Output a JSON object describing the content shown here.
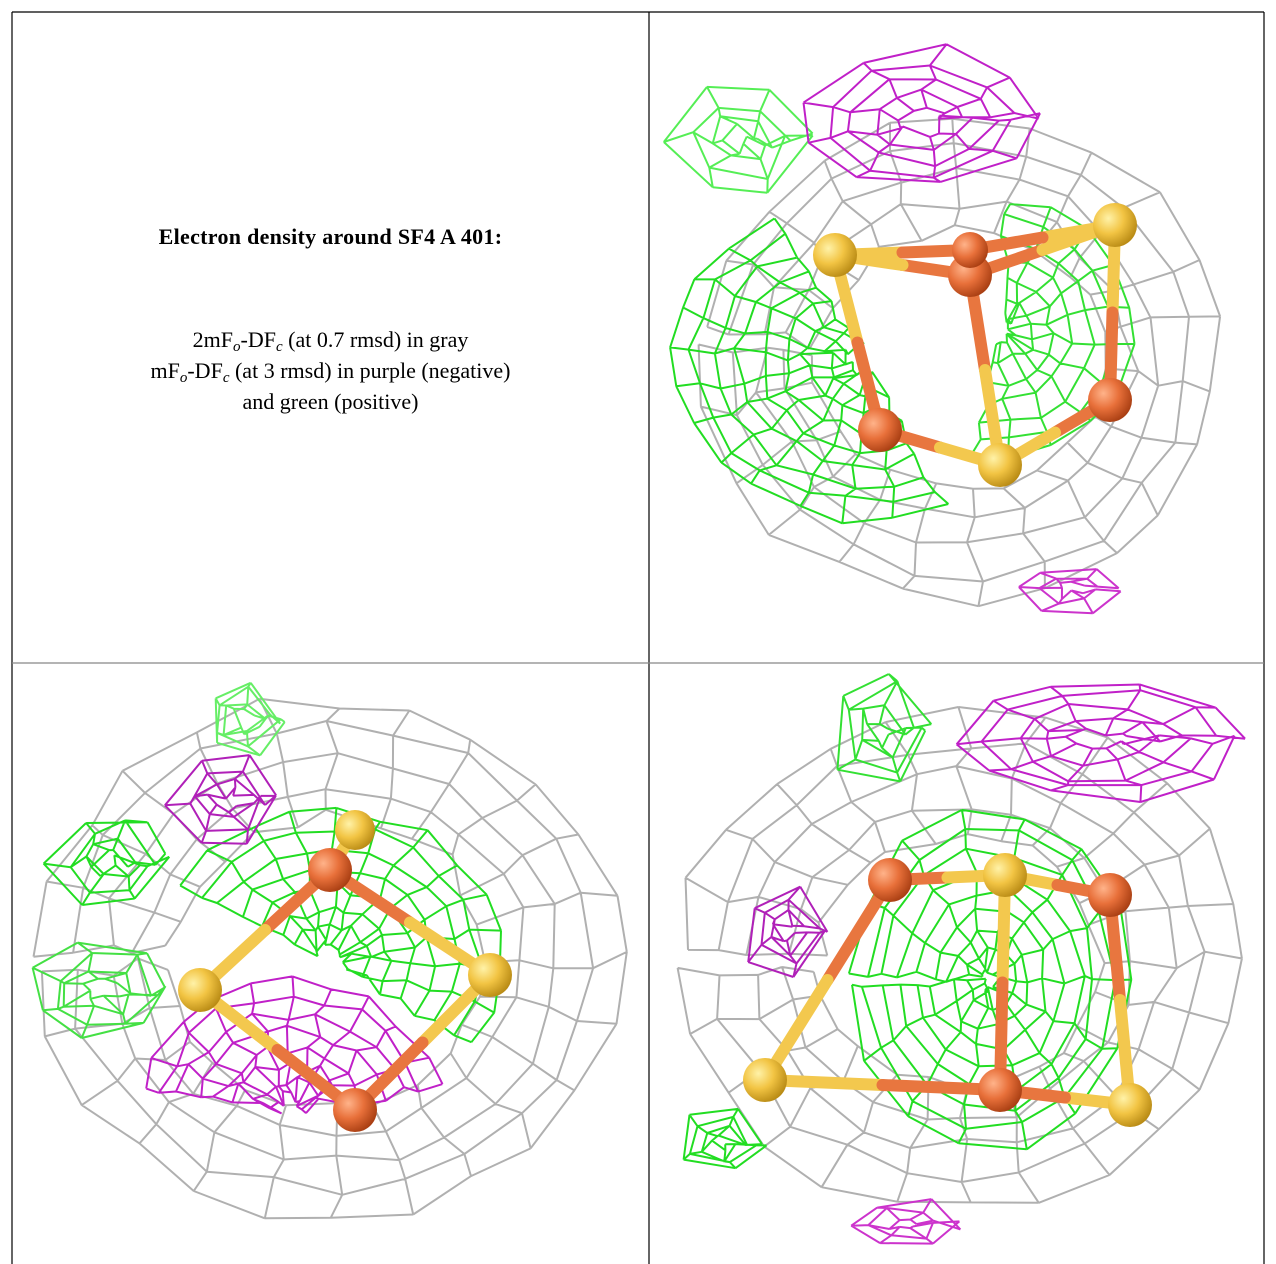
{
  "caption": {
    "title": "Electron density around SF4 A 401:",
    "lines": [
      [
        {
          "text": "2mF"
        },
        {
          "text": "o",
          "sub": true
        },
        {
          "text": "-DF"
        },
        {
          "text": "c",
          "sub": true
        },
        {
          "text": " (at 0.7 rmsd) in gray"
        }
      ],
      [
        {
          "text": "mF"
        },
        {
          "text": "o",
          "sub": true
        },
        {
          "text": "-DF"
        },
        {
          "text": "c",
          "sub": true
        },
        {
          "text": " (at 3 rmsd) in purple (negative)"
        }
      ],
      [
        {
          "text": "and green (positive)"
        }
      ]
    ]
  }
}
